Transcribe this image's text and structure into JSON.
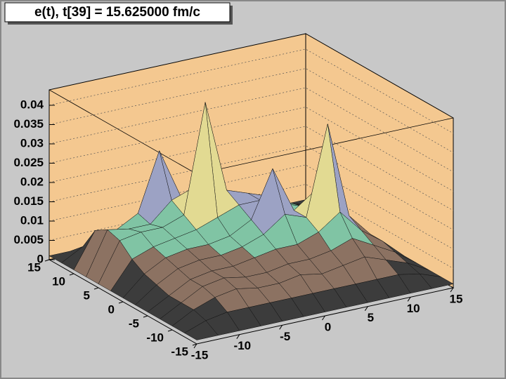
{
  "chart_data": {
    "type": "surface",
    "title": "e(t), t[39] = 15.625000 fm/c",
    "x": [
      -15,
      -12.5,
      -10,
      -7.5,
      -5,
      -2.5,
      0,
      2.5,
      5,
      7.5,
      10,
      12.5,
      15
    ],
    "y": [
      -15,
      -12.5,
      -10,
      -7.5,
      -5,
      -2.5,
      0,
      2.5,
      5,
      7.5,
      10,
      12.5,
      15
    ],
    "z": [
      [
        0.001,
        0.001,
        0.001,
        0.001,
        0.001,
        0.001,
        0.001,
        0.001,
        0.001,
        0.001,
        0.001,
        0.001,
        0.001
      ],
      [
        0.001,
        0.003,
        0.004,
        0.004,
        0.004,
        0.004,
        0.004,
        0.004,
        0.004,
        0.004,
        0.004,
        0.003,
        0.001
      ],
      [
        0.001,
        0.004,
        0.006,
        0.007,
        0.006,
        0.006,
        0.007,
        0.006,
        0.007,
        0.008,
        0.006,
        0.004,
        0.001
      ],
      [
        0.001,
        0.004,
        0.007,
        0.008,
        0.007,
        0.007,
        0.008,
        0.008,
        0.009,
        0.011,
        0.008,
        0.005,
        0.001
      ],
      [
        0.001,
        0.004,
        0.007,
        0.008,
        0.008,
        0.009,
        0.01,
        0.01,
        0.012,
        0.016,
        0.01,
        0.006,
        0.001
      ],
      [
        0.001,
        0.005,
        0.008,
        0.009,
        0.009,
        0.01,
        0.012,
        0.016,
        0.014,
        0.037,
        0.012,
        0.006,
        0.001
      ],
      [
        0.001,
        0.006,
        0.009,
        0.01,
        0.01,
        0.011,
        0.014,
        0.026,
        0.014,
        0.018,
        0.01,
        0.005,
        0.001
      ],
      [
        0.001,
        0.008,
        0.01,
        0.011,
        0.012,
        0.014,
        0.016,
        0.016,
        0.014,
        0.012,
        0.009,
        0.005,
        0.001
      ],
      [
        0.001,
        0.011,
        0.012,
        0.012,
        0.014,
        0.042,
        0.018,
        0.016,
        0.014,
        0.011,
        0.008,
        0.004,
        0.001
      ],
      [
        0.001,
        0.012,
        0.011,
        0.011,
        0.016,
        0.018,
        0.016,
        0.014,
        0.012,
        0.01,
        0.007,
        0.004,
        0.001
      ],
      [
        0.001,
        0.01,
        0.009,
        0.012,
        0.027,
        0.014,
        0.012,
        0.011,
        0.01,
        0.008,
        0.006,
        0.003,
        0.001
      ],
      [
        0.001,
        0.004,
        0.005,
        0.006,
        0.007,
        0.007,
        0.006,
        0.006,
        0.005,
        0.004,
        0.004,
        0.003,
        0.001
      ],
      [
        0.001,
        0.001,
        0.001,
        0.001,
        0.001,
        0.001,
        0.001,
        0.001,
        0.001,
        0.001,
        0.001,
        0.001,
        0.001
      ]
    ],
    "xlim": [
      -15,
      15
    ],
    "xticks": [
      -15,
      -10,
      -5,
      0,
      5,
      10,
      15
    ],
    "ylim": [
      -15,
      15
    ],
    "yticks": [
      -15,
      -10,
      -5,
      0,
      5,
      10,
      15
    ],
    "zlim": [
      0,
      0.044
    ],
    "zticks": [
      0,
      0.005,
      0.01,
      0.015,
      0.02,
      0.025,
      0.03,
      0.035,
      0.04
    ],
    "grid": true,
    "palette": [
      "#3c3c3c",
      "#8c7262",
      "#80c4a4",
      "#9ca2c4",
      "#e2da92",
      "#8e7a92",
      "#a48a9a",
      "#e0202a",
      "#d040d0"
    ],
    "wall_color": "#f4c890"
  }
}
